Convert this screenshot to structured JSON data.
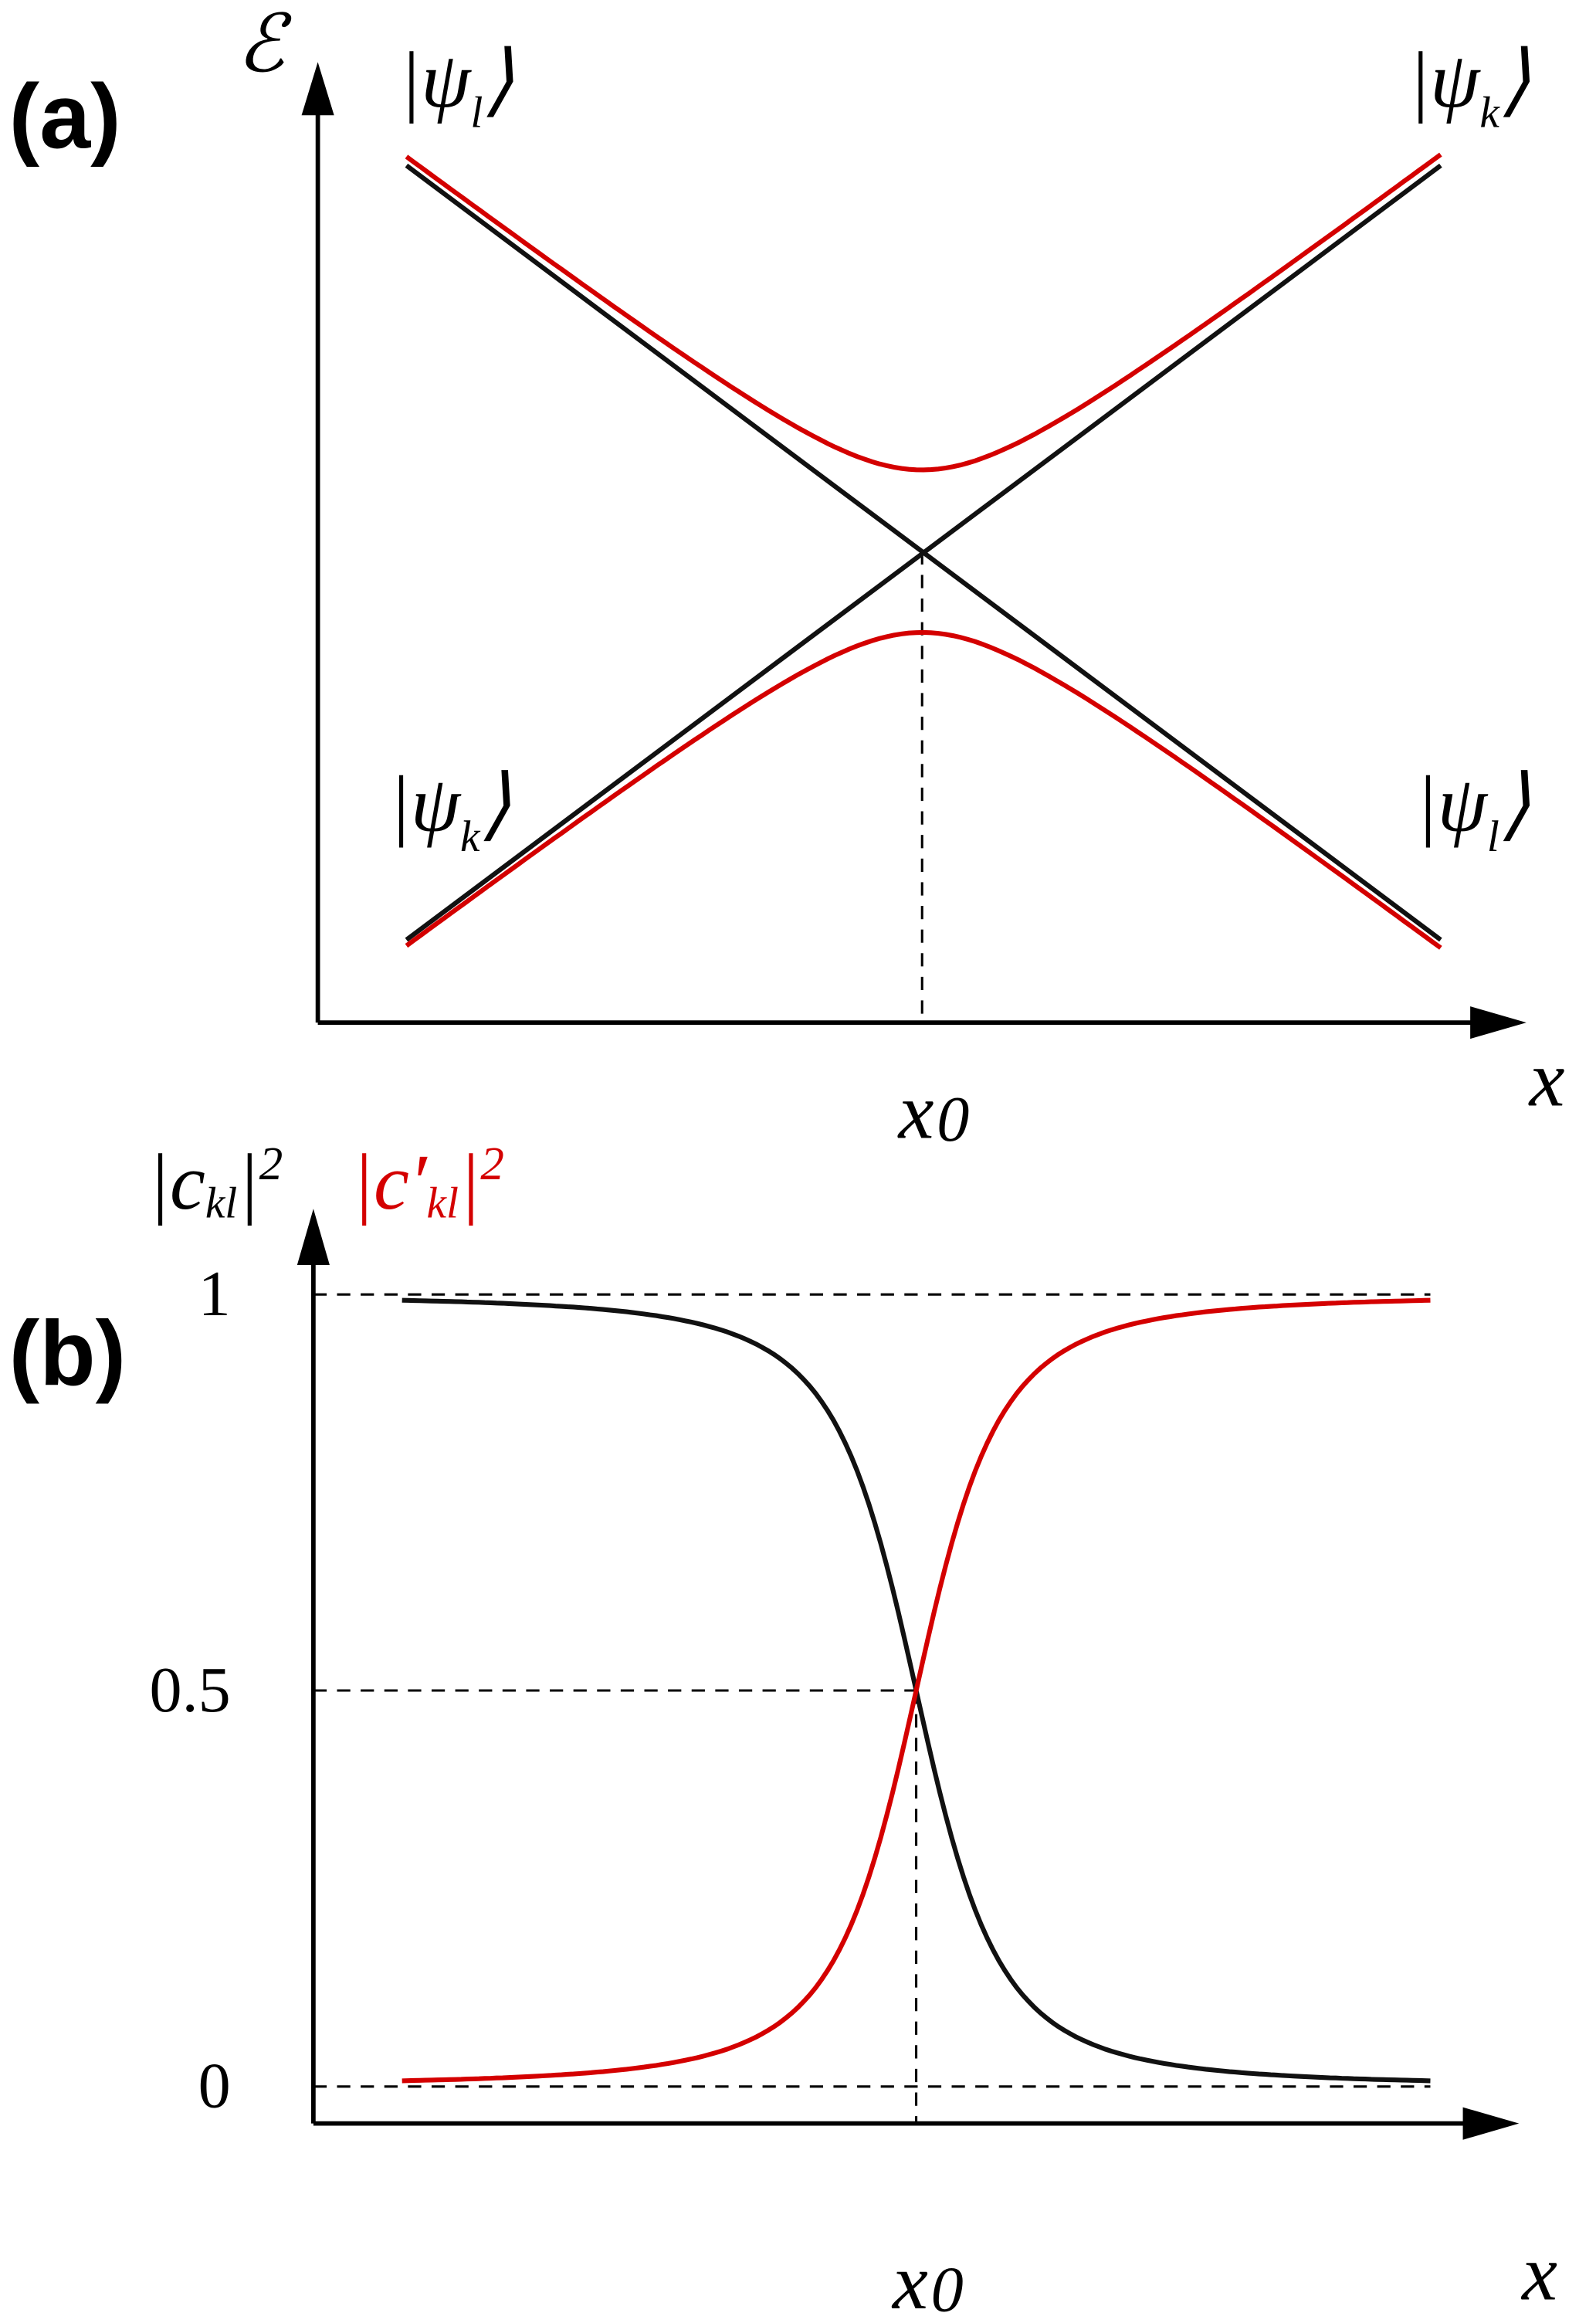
{
  "panel_a": {
    "label": "(a)",
    "y_axis": "ℰ",
    "x_axis": "x",
    "x0": {
      "main": "x",
      "sub": "0"
    },
    "states": [
      {
        "main": "|ψ",
        "sub": "l",
        "close": "⟩"
      },
      {
        "main": "|ψ",
        "sub": "k",
        "close": "⟩"
      },
      {
        "main": "|ψ",
        "sub": "k",
        "close": "⟩"
      },
      {
        "main": "|ψ",
        "sub": "l",
        "close": "⟩"
      }
    ]
  },
  "panel_b": {
    "label": "(b)",
    "x_axis": "x",
    "x0": {
      "main": "x",
      "sub": "0"
    },
    "y_axis_black": {
      "main": "|c",
      "sub": "kl",
      "close": "|",
      "sup": "2"
    },
    "y_axis_red": {
      "main": "|c′",
      "sub": "kl",
      "close": "|",
      "sup": "2"
    },
    "yticks": [
      0,
      0.5,
      1
    ]
  }
}
